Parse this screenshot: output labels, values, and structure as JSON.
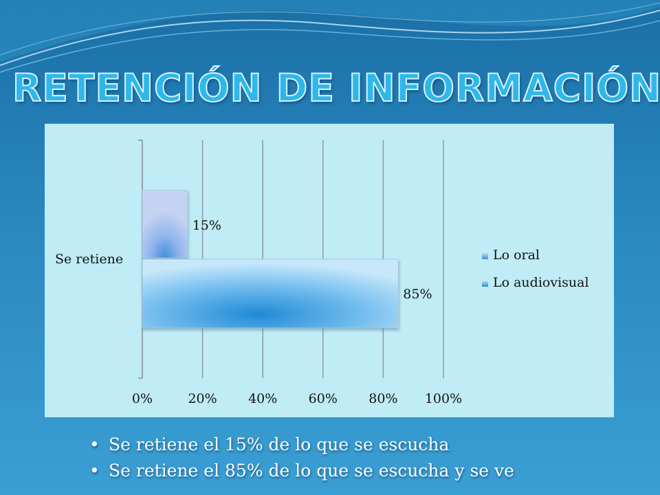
{
  "slide": {
    "title": "RETENCIÓN DE INFORMACIÓN",
    "bullet_glyph": "•",
    "bullets": [
      "Se retiene el 15% de lo que se escucha",
      "Se retiene el 85% de lo que se escucha y se ve"
    ],
    "colors": {
      "background": "#2a88bf",
      "title": "#2fb7ea",
      "chart_background": "#c0ecf6",
      "bullet_text": "#ffffff"
    }
  },
  "chart_data": {
    "type": "bar",
    "orientation": "horizontal",
    "categories": [
      "Se retiene"
    ],
    "series": [
      {
        "name": "Lo oral",
        "values": [
          0.15
        ],
        "label": "15%",
        "color": "#a9bfef"
      },
      {
        "name": "Lo audiovisual",
        "values": [
          0.85
        ],
        "label": "85%",
        "color": "#7fc0ec"
      }
    ],
    "xlim": [
      0,
      1
    ],
    "x_ticks": [
      0,
      0.2,
      0.4,
      0.6,
      0.8,
      1.0
    ],
    "x_tick_labels": [
      "0%",
      "20%",
      "40%",
      "60%",
      "80%",
      "100%"
    ],
    "grid": true,
    "legend_position": "right"
  }
}
